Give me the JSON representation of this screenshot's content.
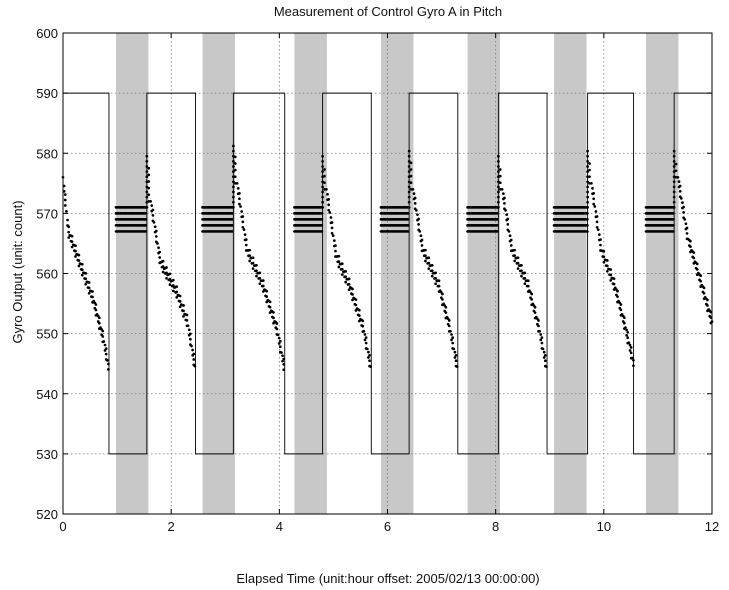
{
  "chart_data": {
    "type": "scatter",
    "title": "Measurement of Control Gyro A in Pitch",
    "xlabel": "Elapsed Time (unit:hour offset: 2005/02/13 00:00:00)",
    "ylabel": "Gyro Output (unit: count)",
    "xlim": [
      0,
      12
    ],
    "ylim": [
      520,
      600
    ],
    "x_ticks": [
      0,
      2,
      4,
      6,
      8,
      10,
      12
    ],
    "y_ticks": [
      520,
      530,
      540,
      550,
      560,
      570,
      580,
      590,
      600
    ],
    "grid": true,
    "shaded_intervals": [
      [
        0.98,
        1.58
      ],
      [
        2.58,
        3.18
      ],
      [
        4.28,
        4.88
      ],
      [
        5.88,
        6.48
      ],
      [
        7.48,
        8.08
      ],
      [
        9.08,
        9.68
      ],
      [
        10.78,
        11.38
      ]
    ],
    "square_wave": {
      "high": 590,
      "low": 530,
      "transitions_x": [
        0.85,
        1.55,
        2.45,
        3.15,
        4.1,
        4.8,
        5.7,
        6.4,
        7.3,
        8.05,
        8.95,
        9.7,
        10.55,
        11.3
      ]
    },
    "gyro_segments": [
      {
        "decay": [
          [
            0.0,
            576
          ],
          [
            0.1,
            567
          ],
          [
            0.3,
            562
          ],
          [
            0.55,
            556
          ],
          [
            0.75,
            549
          ],
          [
            0.85,
            544
          ]
        ],
        "steady_x": [
          0.98,
          1.55
        ],
        "steady_y": [
          567,
          571
        ],
        "spike": [
          [
            1.55,
            580
          ],
          [
            1.62,
            572
          ]
        ]
      },
      {
        "decay": [
          [
            1.62,
            572
          ],
          [
            1.8,
            562
          ],
          [
            2.1,
            557
          ],
          [
            2.3,
            552
          ],
          [
            2.45,
            544
          ]
        ],
        "steady_x": [
          2.58,
          3.15
        ],
        "steady_y": [
          567,
          571
        ],
        "spike": [
          [
            3.15,
            582
          ],
          [
            3.22,
            575
          ]
        ]
      },
      {
        "decay": [
          [
            3.22,
            575
          ],
          [
            3.4,
            564
          ],
          [
            3.7,
            558
          ],
          [
            3.95,
            551
          ],
          [
            4.1,
            544
          ]
        ],
        "steady_x": [
          4.28,
          4.8
        ],
        "steady_y": [
          567,
          571
        ],
        "spike": [
          [
            4.8,
            580
          ],
          [
            4.87,
            574
          ]
        ]
      },
      {
        "decay": [
          [
            4.87,
            574
          ],
          [
            5.05,
            563
          ],
          [
            5.3,
            558
          ],
          [
            5.55,
            551
          ],
          [
            5.7,
            544
          ]
        ],
        "steady_x": [
          5.88,
          6.4
        ],
        "steady_y": [
          567,
          571
        ],
        "spike": [
          [
            6.4,
            581
          ],
          [
            6.47,
            574
          ]
        ]
      },
      {
        "decay": [
          [
            6.47,
            574
          ],
          [
            6.65,
            564
          ],
          [
            6.95,
            558
          ],
          [
            7.15,
            551
          ],
          [
            7.3,
            544
          ]
        ],
        "steady_x": [
          7.48,
          8.05
        ],
        "steady_y": [
          567,
          571
        ],
        "spike": [
          [
            8.05,
            580
          ],
          [
            8.12,
            574
          ]
        ]
      },
      {
        "decay": [
          [
            8.12,
            574
          ],
          [
            8.3,
            564
          ],
          [
            8.6,
            558
          ],
          [
            8.8,
            551
          ],
          [
            8.95,
            544
          ]
        ],
        "steady_x": [
          9.08,
          9.7
        ],
        "steady_y": [
          567,
          571
        ],
        "spike": [
          [
            9.7,
            581
          ],
          [
            9.77,
            575
          ]
        ]
      },
      {
        "decay": [
          [
            9.77,
            575
          ],
          [
            9.95,
            564
          ],
          [
            10.2,
            558
          ],
          [
            10.4,
            551
          ],
          [
            10.55,
            545
          ]
        ],
        "steady_x": [
          10.78,
          11.3
        ],
        "steady_y": [
          567,
          571
        ],
        "spike": [
          [
            11.3,
            581
          ],
          [
            11.37,
            576
          ]
        ]
      },
      {
        "decay": [
          [
            11.37,
            576
          ],
          [
            11.55,
            566
          ],
          [
            11.75,
            560
          ],
          [
            12.0,
            552
          ]
        ],
        "steady_x": null,
        "steady_y": null,
        "spike": null
      }
    ]
  }
}
